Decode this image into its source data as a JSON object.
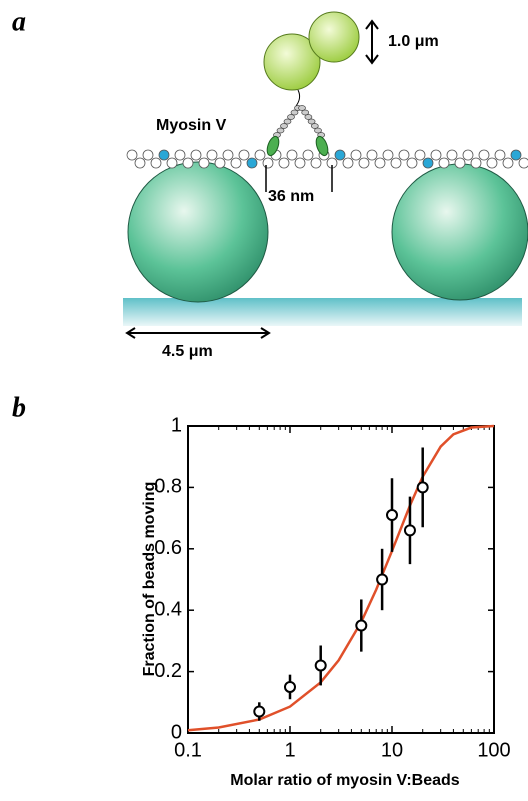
{
  "panel_a": {
    "label": "a",
    "bead_size": "1.0 μm",
    "motor": "Myosin V",
    "step": "36 nm",
    "sphere_size": "4.5 μm"
  },
  "chart_data": {
    "type": "scatter",
    "panel_label": "b",
    "xlabel": "Molar ratio of myosin V:Beads",
    "ylabel": "Fraction of beads moving",
    "xscale": "log",
    "xlim": [
      0.1,
      100
    ],
    "xticks": [
      0.1,
      1,
      10,
      100
    ],
    "ylim": [
      0,
      1
    ],
    "yticks": [
      0,
      0.2,
      0.4,
      0.6,
      0.8,
      1
    ],
    "points": {
      "x": [
        0.5,
        1,
        2,
        5,
        8,
        10,
        15,
        20
      ],
      "values": [
        0.07,
        0.15,
        0.22,
        0.35,
        0.5,
        0.71,
        0.66,
        0.8
      ],
      "errors": [
        0.03,
        0.04,
        0.065,
        0.085,
        0.1,
        0.12,
        0.11,
        0.13
      ],
      "color": "#000000"
    },
    "fit": {
      "x": [
        0.1,
        0.2,
        0.5,
        1,
        2,
        3,
        5,
        7,
        10,
        15,
        20,
        30,
        40,
        60,
        100
      ],
      "values": [
        0.009,
        0.018,
        0.044,
        0.086,
        0.165,
        0.237,
        0.362,
        0.467,
        0.593,
        0.741,
        0.835,
        0.933,
        0.973,
        0.995,
        1.0
      ],
      "color": "#e0502a"
    }
  }
}
